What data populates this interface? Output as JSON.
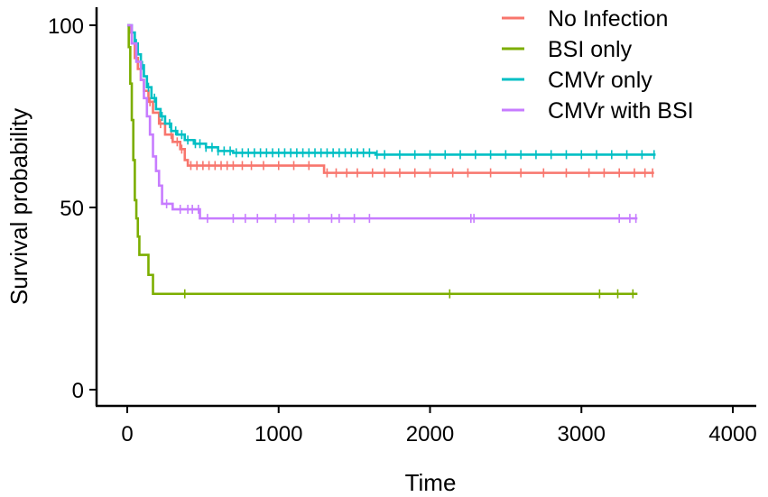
{
  "chart_data": {
    "type": "line",
    "title": "",
    "xlabel": "Time",
    "ylabel": "Survival probability",
    "xlim": [
      -200,
      4200
    ],
    "ylim": [
      -5,
      102
    ],
    "xticks": [
      0,
      1000,
      2000,
      3000,
      4000
    ],
    "yticks": [
      0,
      50,
      100
    ],
    "grid": false,
    "legend_position": "top-right",
    "series": [
      {
        "name": "No Infection",
        "color": "#F8766D",
        "steps": [
          [
            0,
            100
          ],
          [
            15,
            98
          ],
          [
            30,
            95
          ],
          [
            50,
            91
          ],
          [
            70,
            88
          ],
          [
            90,
            85
          ],
          [
            110,
            82
          ],
          [
            140,
            79
          ],
          [
            170,
            76
          ],
          [
            210,
            73
          ],
          [
            250,
            70
          ],
          [
            300,
            68
          ],
          [
            350,
            66
          ],
          [
            380,
            63
          ],
          [
            400,
            61.5
          ],
          [
            1300,
            59.5
          ],
          [
            3480,
            59.5
          ]
        ],
        "censors": [
          150,
          220,
          290,
          330,
          360,
          420,
          460,
          500,
          540,
          580,
          620,
          660,
          700,
          760,
          820,
          900,
          1000,
          1100,
          1200,
          1320,
          1380,
          1450,
          1520,
          1620,
          1700,
          1800,
          1900,
          2000,
          2150,
          2250,
          2400,
          2600,
          2750,
          2900,
          3050,
          3150,
          3250,
          3350,
          3420,
          3470
        ]
      },
      {
        "name": "BSI only",
        "color": "#7CAE00",
        "steps": [
          [
            0,
            100
          ],
          [
            10,
            94
          ],
          [
            20,
            84
          ],
          [
            30,
            74
          ],
          [
            40,
            63
          ],
          [
            50,
            52
          ],
          [
            60,
            47
          ],
          [
            70,
            42
          ],
          [
            80,
            37
          ],
          [
            140,
            31.5
          ],
          [
            170,
            26.3
          ],
          [
            3370,
            26.3
          ]
        ],
        "censors": [
          380,
          2130,
          3120,
          3240,
          3340
        ]
      },
      {
        "name": "CMVr only",
        "color": "#00BFC4",
        "steps": [
          [
            0,
            100
          ],
          [
            30,
            98
          ],
          [
            50,
            95
          ],
          [
            70,
            92
          ],
          [
            90,
            89
          ],
          [
            110,
            86
          ],
          [
            130,
            83
          ],
          [
            160,
            80
          ],
          [
            190,
            77
          ],
          [
            220,
            75
          ],
          [
            250,
            73
          ],
          [
            290,
            71
          ],
          [
            330,
            70
          ],
          [
            380,
            68.5
          ],
          [
            440,
            67.5
          ],
          [
            520,
            66.5
          ],
          [
            600,
            65.5
          ],
          [
            700,
            65
          ],
          [
            1640,
            64.5
          ],
          [
            3490,
            64.5
          ]
        ],
        "censors": [
          60,
          100,
          140,
          180,
          230,
          280,
          320,
          360,
          400,
          450,
          480,
          520,
          560,
          600,
          640,
          680,
          720,
          760,
          800,
          840,
          880,
          920,
          960,
          1000,
          1040,
          1080,
          1120,
          1160,
          1200,
          1240,
          1280,
          1320,
          1360,
          1400,
          1440,
          1480,
          1520,
          1560,
          1600,
          1650,
          1700,
          1800,
          1900,
          2000,
          2100,
          2200,
          2300,
          2400,
          2500,
          2600,
          2700,
          2800,
          2900,
          3000,
          3100,
          3200,
          3300,
          3400,
          3480
        ]
      },
      {
        "name": "CMVr with BSI",
        "color": "#C77CFF",
        "steps": [
          [
            0,
            100
          ],
          [
            30,
            95
          ],
          [
            60,
            90
          ],
          [
            90,
            85
          ],
          [
            110,
            80
          ],
          [
            130,
            75
          ],
          [
            150,
            70
          ],
          [
            170,
            64
          ],
          [
            190,
            60
          ],
          [
            210,
            56
          ],
          [
            230,
            51
          ],
          [
            300,
            49.5
          ],
          [
            480,
            47
          ],
          [
            3370,
            47
          ]
        ],
        "censors": [
          260,
          350,
          400,
          430,
          470,
          530,
          700,
          780,
          860,
          980,
          1100,
          1200,
          1350,
          1400,
          1500,
          1600,
          2270,
          2290,
          3250,
          3320,
          3360
        ]
      }
    ]
  }
}
